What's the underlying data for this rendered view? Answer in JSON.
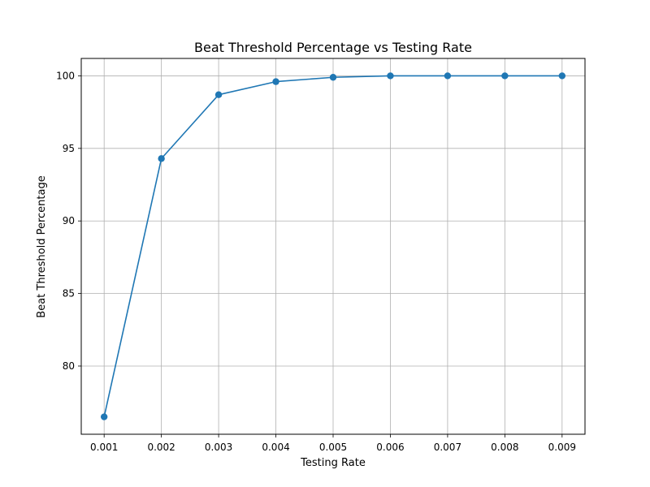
{
  "chart_data": {
    "type": "line",
    "title": "Beat Threshold Percentage vs Testing Rate",
    "xlabel": "Testing Rate",
    "ylabel": "Beat Threshold Percentage",
    "x": [
      0.001,
      0.002,
      0.003,
      0.004,
      0.005,
      0.006,
      0.007,
      0.008,
      0.009
    ],
    "x_tick_labels": [
      "0.001",
      "0.002",
      "0.003",
      "0.004",
      "0.005",
      "0.006",
      "0.007",
      "0.008",
      "0.009"
    ],
    "series": [
      {
        "values": [
          76.5,
          94.3,
          98.7,
          99.6,
          99.9,
          100.0,
          100.0,
          100.0,
          100.0
        ],
        "color": "#1f77b4",
        "marker": "circle"
      }
    ],
    "y_ticks": [
      80,
      85,
      90,
      95,
      100
    ],
    "y_tick_labels": [
      "80",
      "85",
      "90",
      "95",
      "100"
    ],
    "xlim": [
      0.0006,
      0.0094
    ],
    "ylim": [
      75.3,
      101.2
    ],
    "grid": true,
    "legend": "none"
  }
}
